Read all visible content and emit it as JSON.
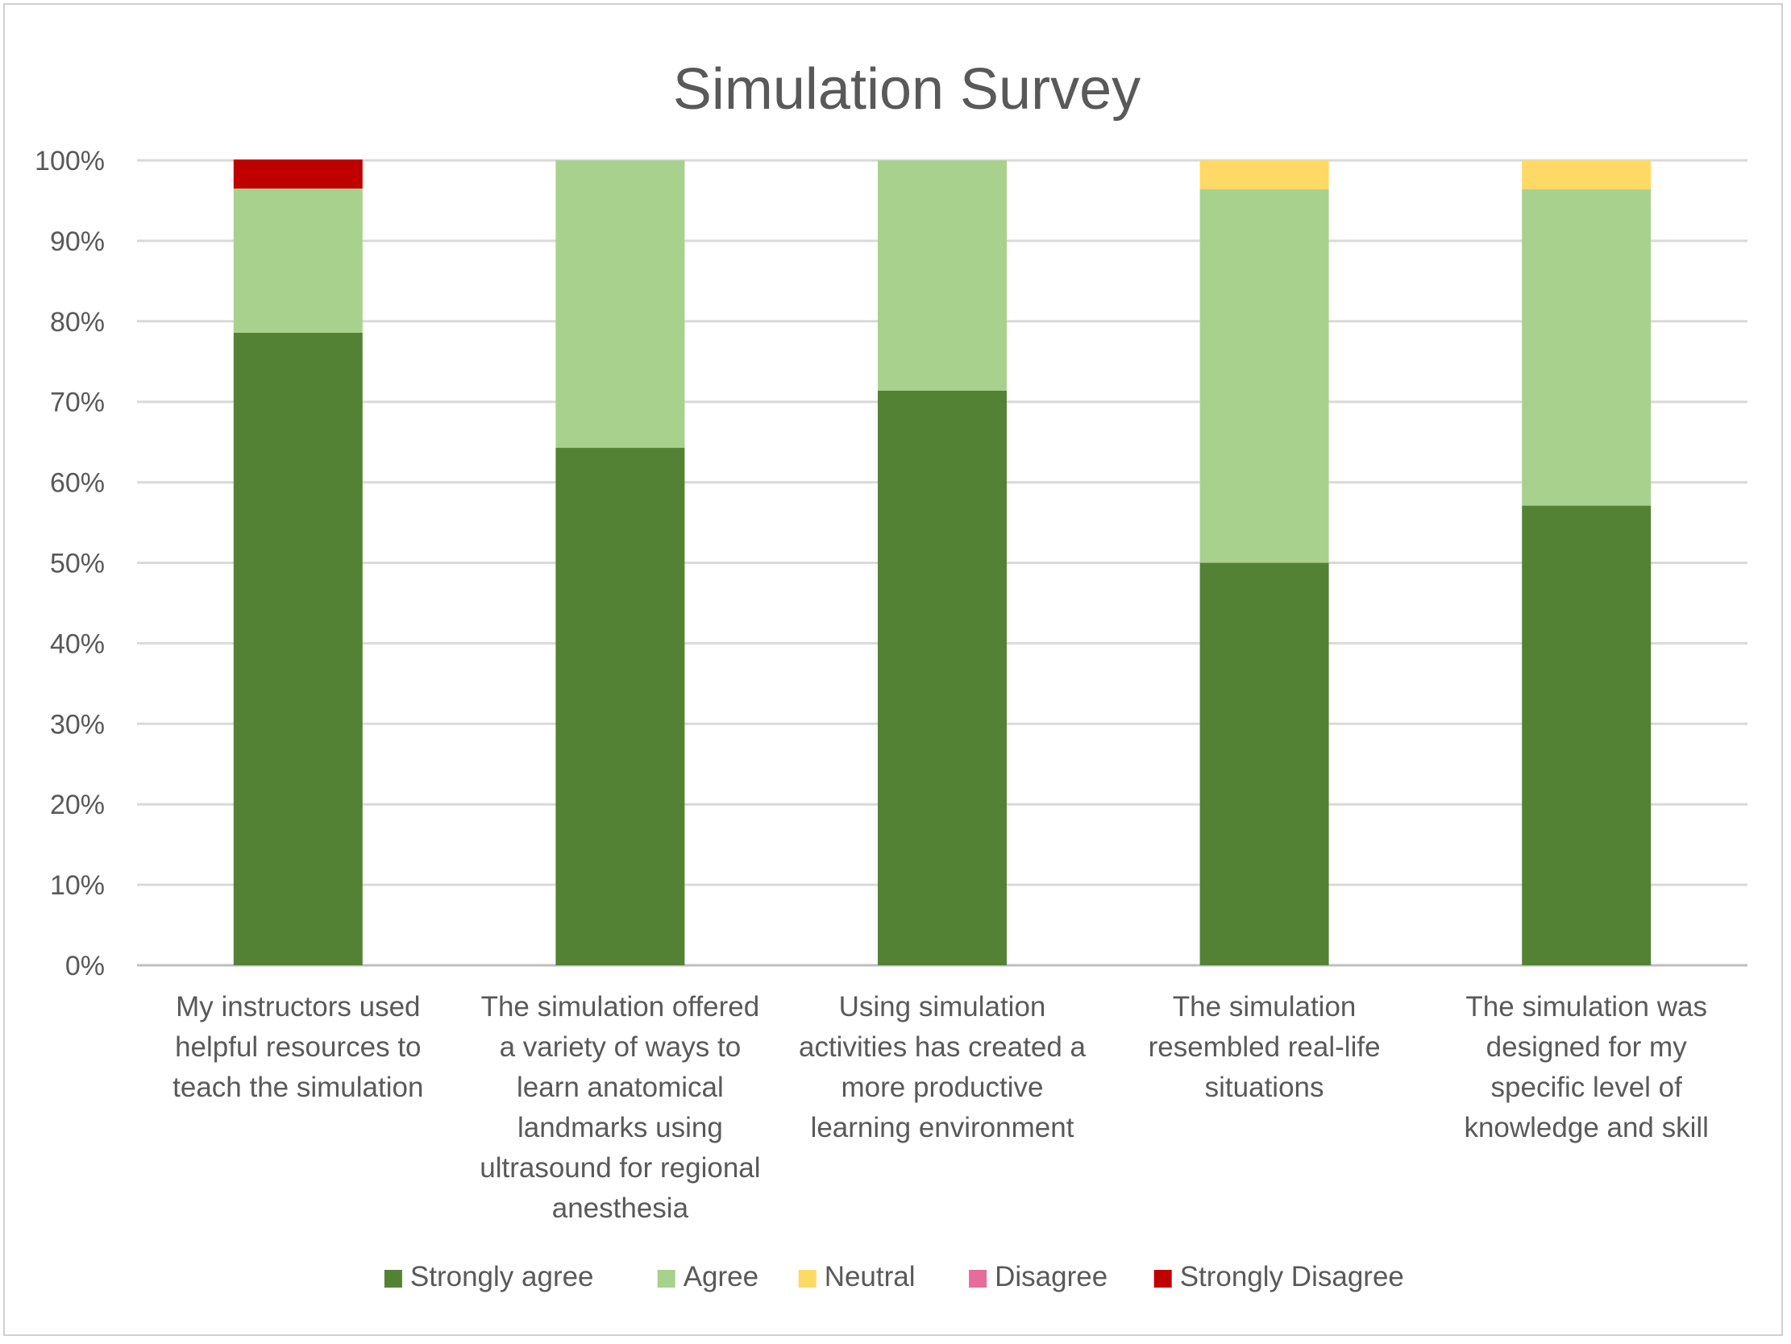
{
  "chart_data": {
    "type": "bar",
    "stacked": true,
    "title": "Simulation Survey",
    "xlabel": "",
    "ylabel": "",
    "ylim": [
      0,
      100
    ],
    "y_ticks": [
      "0%",
      "10%",
      "20%",
      "30%",
      "40%",
      "50%",
      "60%",
      "70%",
      "80%",
      "90%",
      "100%"
    ],
    "grid": "horizontal",
    "legend_position": "bottom",
    "categories": [
      [
        "My instructors used",
        "helpful resources to",
        "teach the simulation"
      ],
      [
        "The simulation offered",
        "a variety of ways to",
        "learn anatomical",
        "landmarks using",
        "ultrasound for regional",
        "anesthesia"
      ],
      [
        "Using simulation",
        "activities has created a",
        "more productive",
        "learning environment"
      ],
      [
        "The simulation",
        "resembled real-life",
        "situations"
      ],
      [
        "The simulation was",
        "designed for my",
        "specific level of",
        "knowledge and skill"
      ]
    ],
    "series": [
      {
        "name": "Strongly agree",
        "color": "#548235",
        "values": [
          78.6,
          64.3,
          71.4,
          50.0,
          57.1
        ]
      },
      {
        "name": "Agree",
        "color": "#a9d18e",
        "values": [
          17.9,
          35.7,
          28.6,
          46.4,
          39.3
        ]
      },
      {
        "name": "Neutral",
        "color": "#ffd966",
        "values": [
          0,
          0,
          0,
          3.6,
          3.6
        ]
      },
      {
        "name": "Disagree",
        "color": "#e66c9c",
        "values": [
          0,
          0,
          0,
          0,
          0
        ]
      },
      {
        "name": "Strongly Disagree",
        "color": "#c00000",
        "values": [
          3.6,
          0,
          0,
          0,
          0
        ]
      }
    ]
  }
}
